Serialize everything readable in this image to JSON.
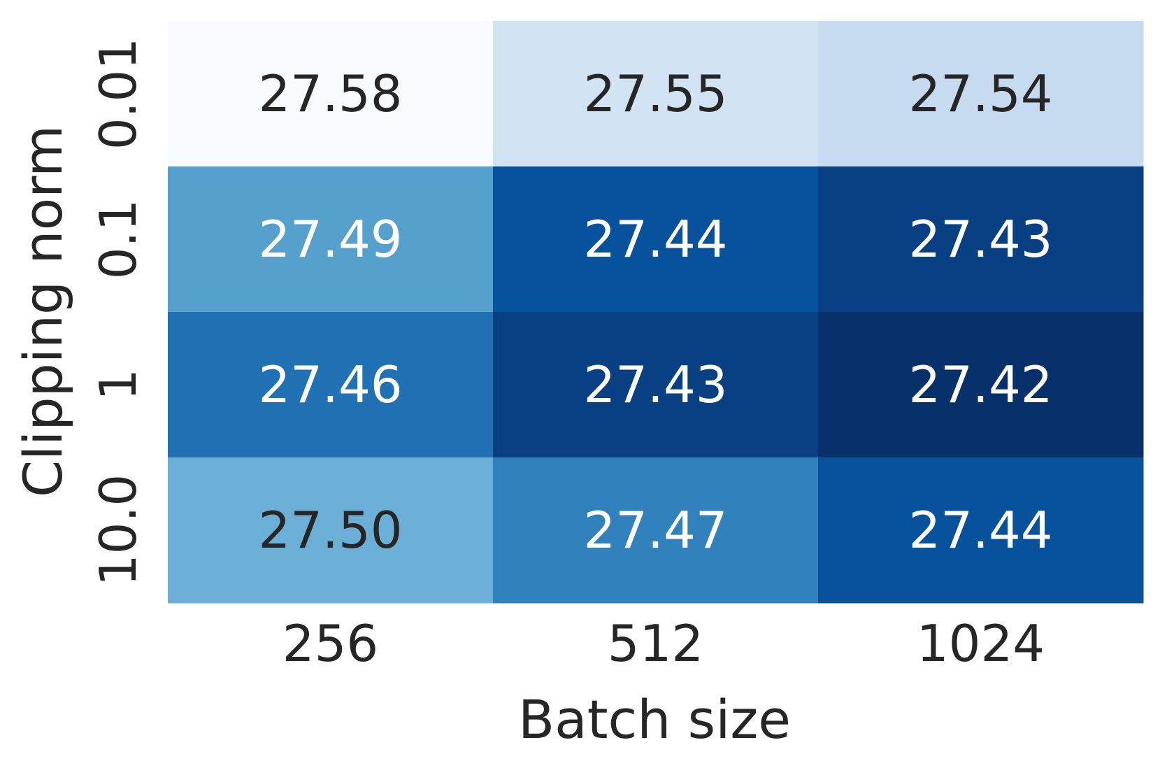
{
  "chart_data": {
    "type": "heatmap",
    "title": "",
    "xlabel": "Batch size",
    "ylabel": "Clipping norm",
    "x_categories": [
      "256",
      "512",
      "1024"
    ],
    "y_categories": [
      "0.01",
      "0.1",
      "1",
      "10.0"
    ],
    "values": [
      [
        27.58,
        27.55,
        27.54
      ],
      [
        27.49,
        27.44,
        27.43
      ],
      [
        27.46,
        27.43,
        27.42
      ],
      [
        27.5,
        27.47,
        27.44
      ]
    ],
    "value_labels": [
      [
        "27.58",
        "27.55",
        "27.54"
      ],
      [
        "27.49",
        "27.44",
        "27.43"
      ],
      [
        "27.46",
        "27.43",
        "27.42"
      ],
      [
        "27.50",
        "27.47",
        "27.44"
      ]
    ],
    "colormap": "Blues_r",
    "vmin": 27.42,
    "vmax": 27.58,
    "colorbar": false,
    "annotation_dark_color": "#262626",
    "annotation_light_color": "#ffffff"
  }
}
